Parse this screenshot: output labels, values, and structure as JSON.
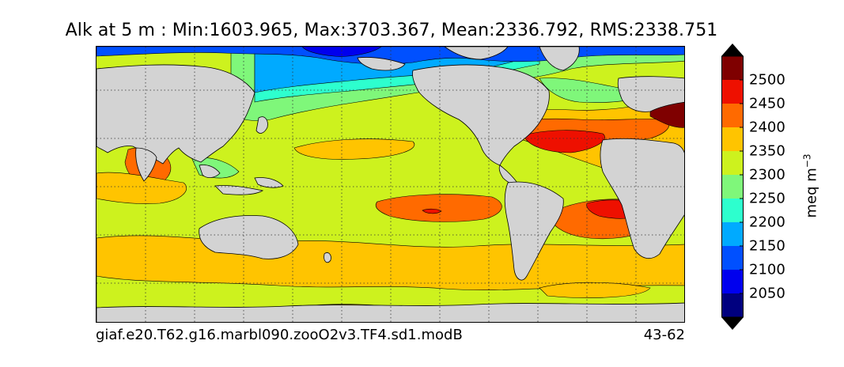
{
  "title": "Alk at 5 m : Min:1603.965, Max:3703.367, Mean:2336.792, RMS:2338.751",
  "caption_left": "giaf.e20.T62.g16.marbl090.zooO2v3.TF4.sd1.modB",
  "caption_right": "43-62",
  "colorbar": {
    "unit_label": "meq m",
    "unit_exponent": "−3",
    "ticks": [
      "2500",
      "2450",
      "2400",
      "2350",
      "2300",
      "2250",
      "2200",
      "2150",
      "2100",
      "2050"
    ],
    "colors_top_to_bottom": [
      "#7f0000",
      "#ee1000",
      "#ff6a00",
      "#ffc400",
      "#cdf21e",
      "#7ff77a",
      "#2dffce",
      "#00aaff",
      "#0050ff",
      "#0000ee",
      "#00007f"
    ],
    "extend": "both"
  },
  "colors": {
    "land": "#d3d3d3",
    "background": "#ffffff"
  }
}
